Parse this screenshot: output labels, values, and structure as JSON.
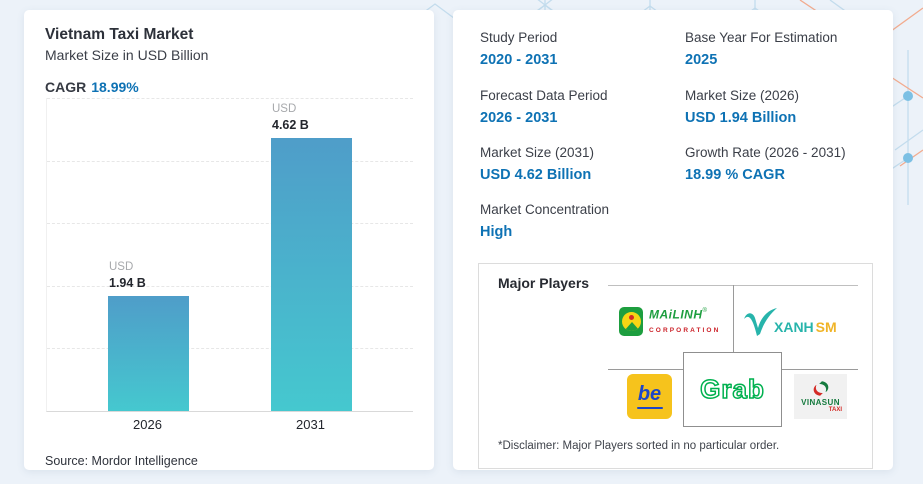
{
  "colors": {
    "accent_blue": "#0e72b4",
    "text_dark": "#2d313a",
    "text_gray": "#a7a9ac",
    "background": "#ecf2f9",
    "bar_gradient_top": "#4f9dc9",
    "bar_gradient_bottom": "#45c8cf",
    "pattern_line_blue": "#c3dced",
    "pattern_line_orange": "#f2ab8e",
    "pattern_dot_blue": "#7cc0e4"
  },
  "left_card": {
    "title": "Vietnam Taxi Market",
    "subtitle": "Market Size in USD Billion",
    "cagr_label": "CAGR",
    "cagr_value": "18.99%",
    "source": "Source: Mordor Intelligence"
  },
  "chart_data": {
    "type": "bar",
    "title": "Vietnam Taxi Market",
    "subtitle": "Market Size in USD Billion",
    "categories": [
      "2026",
      "2031"
    ],
    "values": [
      1.94,
      4.62
    ],
    "ylabel": "USD Billion",
    "xlabel": "",
    "ylim": [
      0,
      5.3
    ],
    "gridlines": 5,
    "grid_style": "dashed horizontal",
    "legend": "none",
    "bars": [
      {
        "unit": "USD",
        "value_label": "1.94 B"
      },
      {
        "unit": "USD",
        "value_label": "4.62 B"
      }
    ]
  },
  "right_card": {
    "stats": [
      {
        "label": "Study Period",
        "value": "2020 - 2031"
      },
      {
        "label": "Base Year For Estimation",
        "value": "2025"
      },
      {
        "label": "Forecast Data Period",
        "value": "2026 - 2031"
      },
      {
        "label": "Market Size (2026)",
        "value": "USD 1.94 Billion"
      },
      {
        "label": "Market Size (2031)",
        "value": "USD 4.62 Billion"
      },
      {
        "label": "Growth Rate (2026 - 2031)",
        "value": "18.99 % CAGR"
      },
      {
        "label": "Market Concentration",
        "value": "High"
      }
    ],
    "major_players": {
      "title": "Major Players",
      "disclaimer": "*Disclaimer: Major Players sorted in no particular order.",
      "logos": {
        "mailinh": {
          "name": "Mai Linh Corporation",
          "word": "MAiLINH",
          "reg": "®",
          "sub": "CORPORATION"
        },
        "xanhsm": {
          "name": "Xanh SM",
          "word": "XANH",
          "word2": "SM"
        },
        "be": {
          "name": "be",
          "word": "be"
        },
        "grab": {
          "name": "Grab",
          "word": "Grab"
        },
        "vinasun": {
          "name": "Vinasun Taxi",
          "word": "VINASUN",
          "word2": "TAXI"
        }
      }
    }
  }
}
